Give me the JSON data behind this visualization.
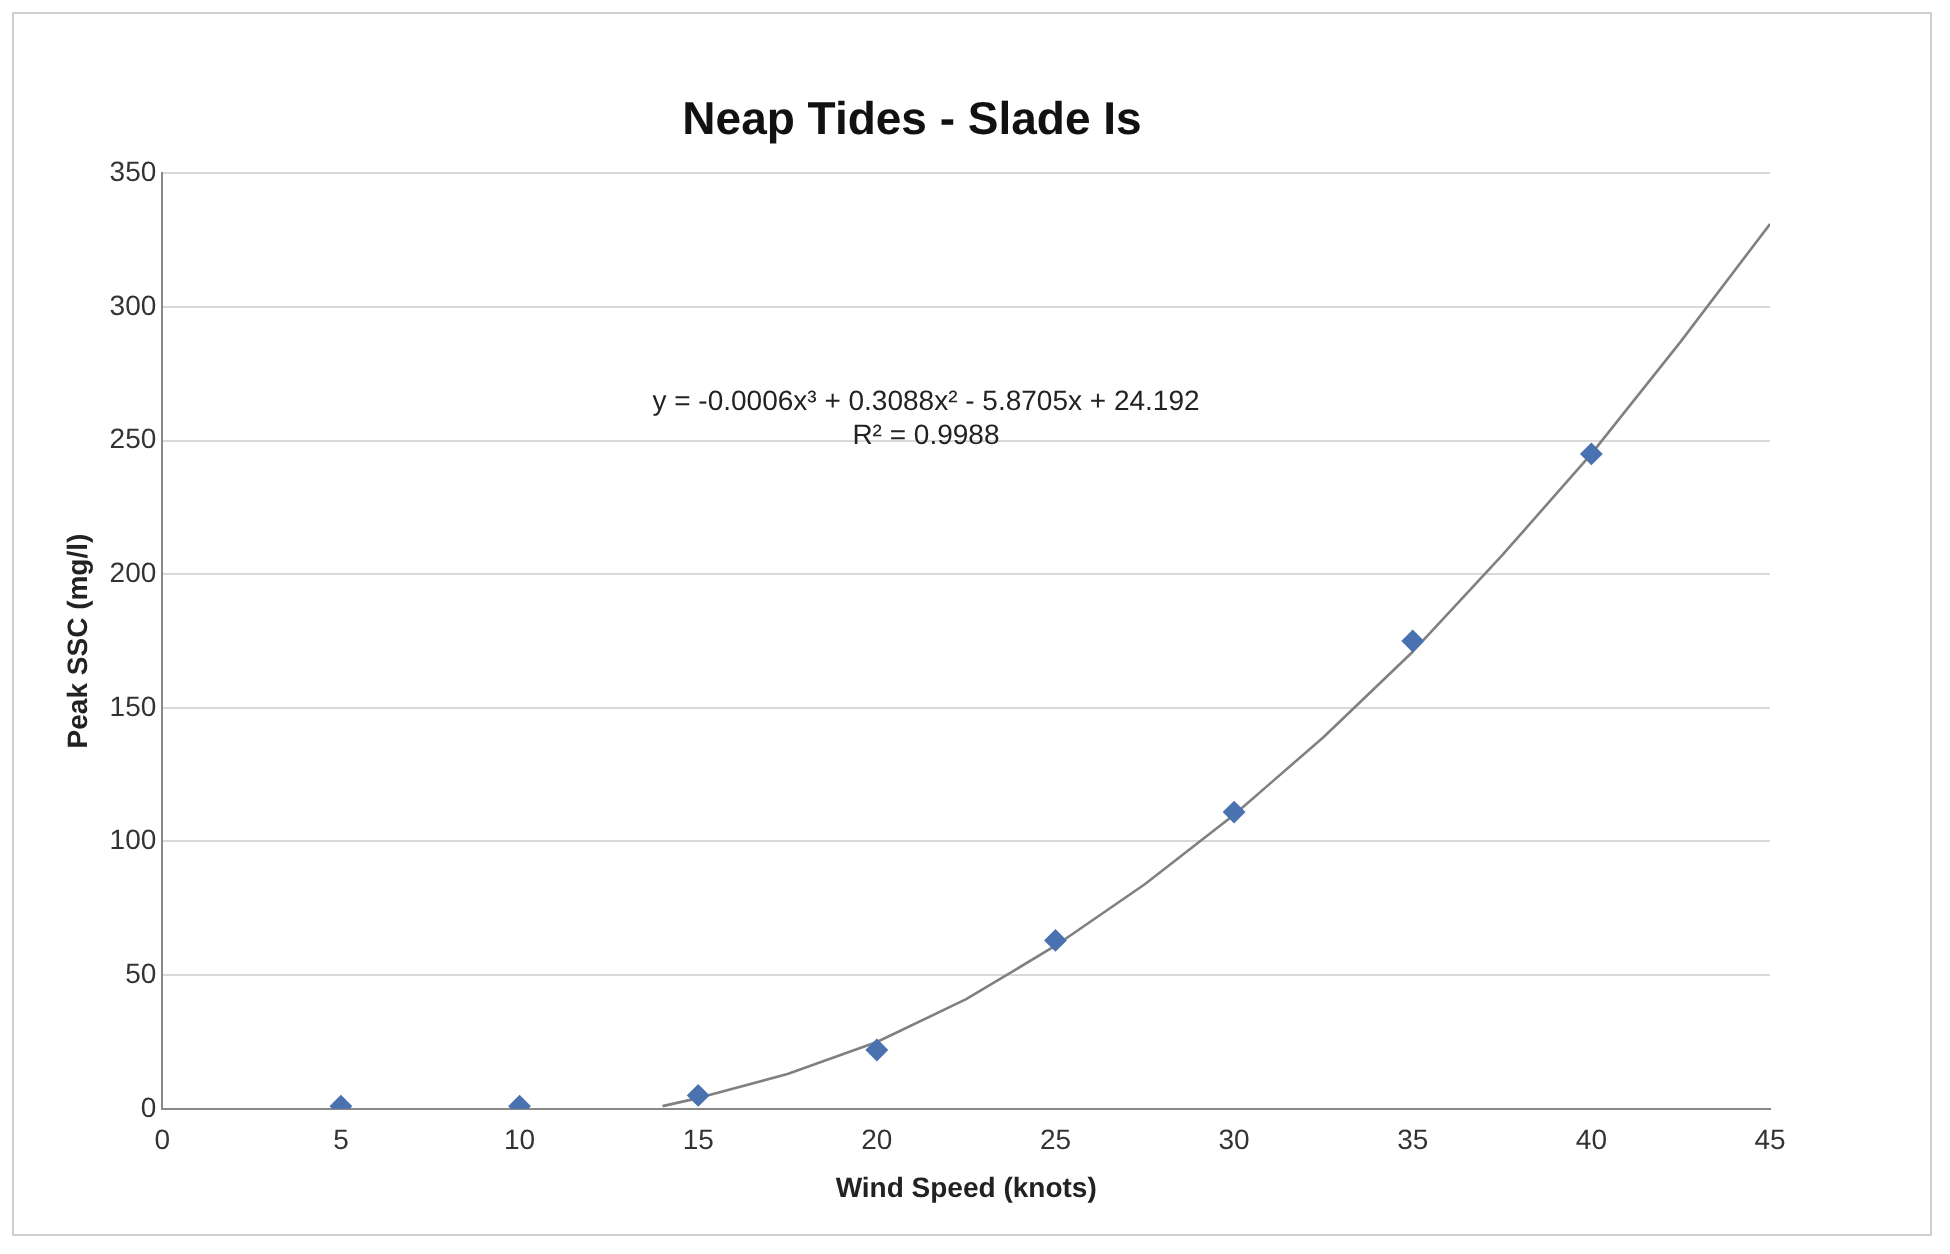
{
  "chart_data": {
    "type": "scatter",
    "title": "Neap Tides - Slade Is",
    "xlabel": "Wind Speed (knots)",
    "ylabel": "Peak SSC (mg/l)",
    "series": [
      {
        "color": "#4a72b0",
        "marker": "diamond",
        "x": [
          5,
          10,
          15,
          20,
          25,
          30,
          35,
          40
        ],
        "values": [
          1,
          1,
          5,
          22,
          63,
          111,
          175,
          245
        ]
      },
      {
        "type": "line",
        "color": "#808080",
        "marker": "none",
        "x": [
          14,
          15,
          17.5,
          20,
          22.5,
          25,
          27.5,
          30,
          32.5,
          35,
          37.5,
          40,
          42.5,
          45
        ],
        "values": [
          1,
          4,
          13,
          25,
          41,
          61,
          84,
          110,
          139,
          171,
          207,
          245,
          287,
          331
        ]
      }
    ],
    "xlim": [
      0,
      45
    ],
    "xticks": [
      0,
      5,
      10,
      15,
      20,
      25,
      30,
      35,
      40,
      45
    ],
    "ylim": [
      0,
      350
    ],
    "yticks": [
      0,
      50,
      100,
      150,
      200,
      250,
      300,
      350
    ],
    "grid": "y",
    "legend": false,
    "annotations": [
      "y = -0.0006x³ + 0.3088x² - 5.8705x + 24.192",
      "R² = 0.9988"
    ]
  }
}
